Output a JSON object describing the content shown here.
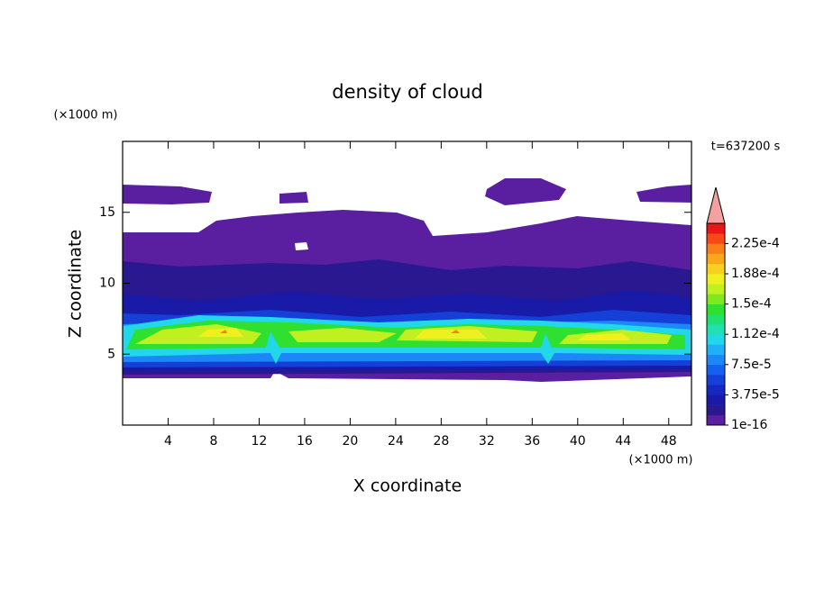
{
  "chart_data": {
    "type": "contour",
    "title": "density of cloud",
    "x_label": "X coordinate",
    "y_label": "Z coordinate",
    "x_unit": "(×1000 m)",
    "y_unit": "(×1000 m)",
    "annotation": "t=637200 s",
    "xlim": [
      0,
      50
    ],
    "xticks": [
      4,
      8,
      12,
      16,
      20,
      24,
      28,
      32,
      36,
      40,
      44,
      48
    ],
    "ylim": [
      0,
      20
    ],
    "yticks": [
      5,
      10,
      15
    ],
    "colorbar": {
      "clim": [
        1e-16,
        0.00025
      ],
      "ticks": [
        {
          "value": 1e-16,
          "label": "1e-16"
        },
        {
          "value": 3.75e-05,
          "label": "3.75e-5"
        },
        {
          "value": 7.5e-05,
          "label": "7.5e-5"
        },
        {
          "value": 0.0001125,
          "label": "1.12e-4"
        },
        {
          "value": 0.00015,
          "label": "1.5e-4"
        },
        {
          "value": 0.0001875,
          "label": "1.88e-4"
        },
        {
          "value": 0.000225,
          "label": "2.25e-4"
        }
      ],
      "colors": [
        "#5a1ea0",
        "#2a1890",
        "#1a1aa8",
        "#1428c0",
        "#1440d8",
        "#1460f0",
        "#1c88f8",
        "#20b0f8",
        "#20d8e8",
        "#20e0b0",
        "#20e070",
        "#30e030",
        "#80e820",
        "#c0f020",
        "#f0f020",
        "#f8d020",
        "#f8a818",
        "#f88018",
        "#f84818",
        "#e81818"
      ],
      "extend_color": "#f4a0a0"
    }
  }
}
